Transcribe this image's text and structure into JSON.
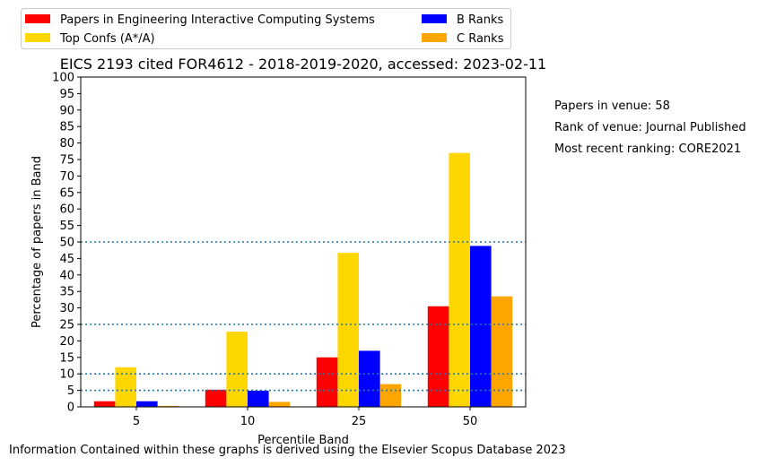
{
  "chart_data": {
    "type": "bar",
    "title": "EICS 2193 cited FOR4612 - 2018-2019-2020, accessed: 2023-02-11",
    "xlabel": "Percentile Band",
    "ylabel": "Percentage of papers in Band",
    "categories": [
      "5",
      "10",
      "25",
      "50"
    ],
    "ylim": [
      0,
      100
    ],
    "yticks": [
      0,
      5,
      10,
      15,
      20,
      25,
      30,
      35,
      40,
      45,
      50,
      55,
      60,
      65,
      70,
      75,
      80,
      85,
      90,
      95,
      100
    ],
    "reference_lines": [
      5,
      10,
      25,
      50
    ],
    "reference_line_color": "#1f77b4",
    "legend_position": "top-left, outside plot, 2 columns",
    "series": [
      {
        "name": "Papers in Engineering Interactive Computing Systems",
        "color": "#ff0000",
        "values": [
          1.7,
          5.2,
          15.0,
          30.5
        ]
      },
      {
        "name": "Top Confs (A*/A)",
        "color": "#ffd700",
        "values": [
          12.0,
          22.8,
          46.7,
          77.0
        ]
      },
      {
        "name": "B Ranks",
        "color": "#0000ff",
        "values": [
          1.7,
          4.9,
          17.0,
          48.8
        ]
      },
      {
        "name": "C Ranks",
        "color": "#ffa500",
        "values": [
          0.3,
          1.5,
          6.9,
          33.5
        ]
      }
    ]
  },
  "info": {
    "papers_in_venue": "Papers in venue: 58",
    "rank_of_venue": "Rank of venue: Journal Published",
    "most_recent_ranking": "Most recent ranking: CORE2021"
  },
  "footer": "Information Contained within these graphs is derived using the Elsevier Scopus Database 2023"
}
